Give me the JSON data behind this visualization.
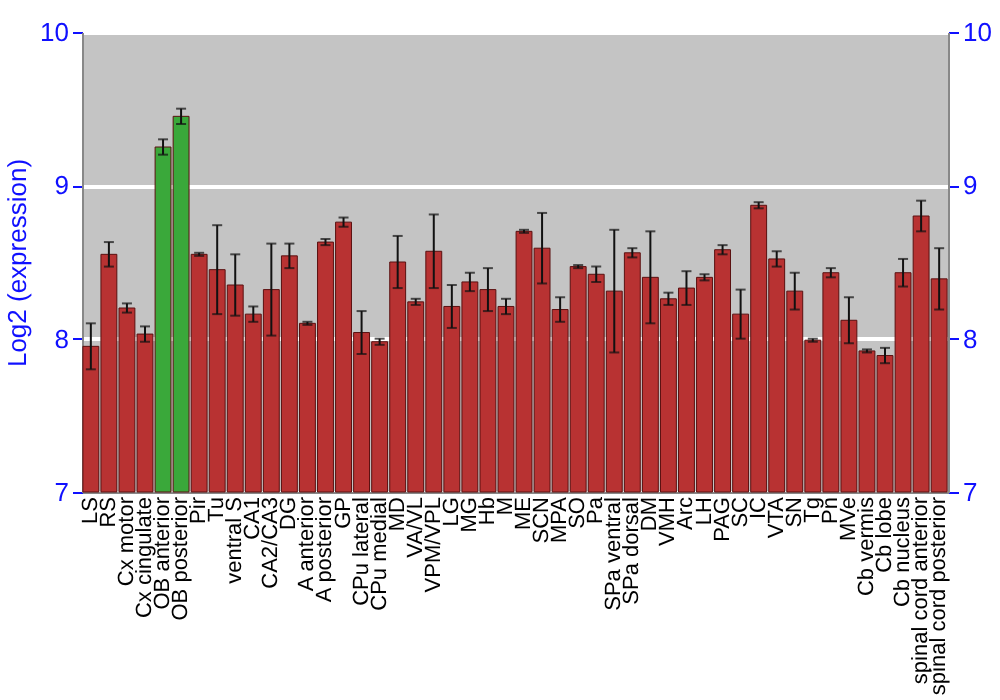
{
  "chart_data": {
    "type": "bar",
    "ylabel": "Log2 (expression)",
    "categories": [
      "LS",
      "RS",
      "Cx motor",
      "Cx cingulate",
      "OB anterior",
      "OB posterior",
      "Pir",
      "Tu",
      "ventral S",
      "CA1",
      "CA2/CA3",
      "DG",
      "A anterior",
      "A posterior",
      "GP",
      "CPu lateral",
      "CPu medial",
      "MD",
      "VA/VL",
      "VPM/VPL",
      "LG",
      "MG",
      "Hb",
      "M",
      "ME",
      "SCN",
      "MPA",
      "SO",
      "Pa",
      "SPa ventral",
      "SPa dorsal",
      "DM",
      "VMH",
      "Arc",
      "LH",
      "PAG",
      "SC",
      "IC",
      "VTA",
      "SN",
      "Tg",
      "Pn",
      "MVe",
      "Cb vermis",
      "Cb lobe",
      "Cb nucleus",
      "spinal cord anterior",
      "spinal cord posterior"
    ],
    "values": [
      7.95,
      8.55,
      8.2,
      8.03,
      9.25,
      9.45,
      8.55,
      8.45,
      8.35,
      8.16,
      8.32,
      8.54,
      8.1,
      8.63,
      8.76,
      8.04,
      7.98,
      8.5,
      8.24,
      8.57,
      8.21,
      8.37,
      8.32,
      8.21,
      8.7,
      8.59,
      8.19,
      8.47,
      8.42,
      8.31,
      8.56,
      8.4,
      8.26,
      8.33,
      8.4,
      8.58,
      8.16,
      8.87,
      8.52,
      8.31,
      7.99,
      8.43,
      8.12,
      7.92,
      7.89,
      8.43,
      8.8,
      8.39
    ],
    "errors": [
      0.15,
      0.08,
      0.03,
      0.05,
      0.05,
      0.05,
      0.01,
      0.29,
      0.2,
      0.05,
      0.3,
      0.08,
      0.01,
      0.02,
      0.03,
      0.14,
      0.02,
      0.17,
      0.02,
      0.24,
      0.14,
      0.06,
      0.14,
      0.05,
      0.01,
      0.23,
      0.08,
      0.01,
      0.05,
      0.4,
      0.03,
      0.3,
      0.04,
      0.11,
      0.02,
      0.03,
      0.16,
      0.02,
      0.05,
      0.12,
      0.01,
      0.03,
      0.15,
      0.01,
      0.05,
      0.09,
      0.1,
      0.2
    ],
    "colors": [
      "#b83232",
      "#b83232",
      "#b83232",
      "#b83232",
      "#3aa83a",
      "#3aa83a",
      "#b83232",
      "#b83232",
      "#b83232",
      "#b83232",
      "#b83232",
      "#b83232",
      "#b83232",
      "#b83232",
      "#b83232",
      "#b83232",
      "#b83232",
      "#b83232",
      "#b83232",
      "#b83232",
      "#b83232",
      "#b83232",
      "#b83232",
      "#b83232",
      "#b83232",
      "#b83232",
      "#b83232",
      "#b83232",
      "#b83232",
      "#b83232",
      "#b83232",
      "#b83232",
      "#b83232",
      "#b83232",
      "#b83232",
      "#b83232",
      "#b83232",
      "#b83232",
      "#b83232",
      "#b83232",
      "#b83232",
      "#b83232",
      "#b83232",
      "#b83232",
      "#b83232",
      "#b83232",
      "#b83232",
      "#b83232"
    ],
    "ylim": [
      7,
      10
    ],
    "yticks": [
      7,
      8,
      9,
      10
    ],
    "y2lim": [
      7,
      10
    ],
    "y2ticks": [
      7,
      8,
      9,
      10
    ],
    "grid": "y"
  }
}
